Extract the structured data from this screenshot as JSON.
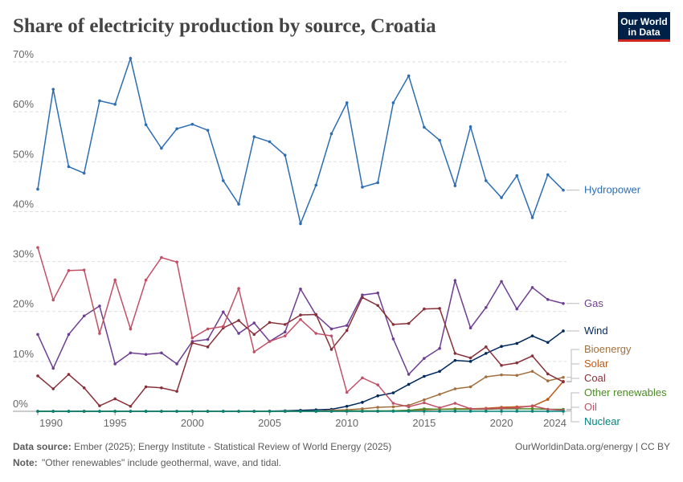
{
  "chart_data": {
    "type": "line",
    "title": "Share of electricity production by source, Croatia",
    "logo": [
      "Our World",
      "in Data"
    ],
    "source_label": "Data source:",
    "source": "Ember (2025); Energy Institute - Statistical Review of World Energy (2025)",
    "url": "OurWorldinData.org/energy | CC BY",
    "note_label": "Note:",
    "note": "\"Other renewables\" include geothermal, wave, and tidal.",
    "x": [
      1990,
      1991,
      1992,
      1993,
      1994,
      1995,
      1996,
      1997,
      1998,
      1999,
      2000,
      2001,
      2002,
      2003,
      2004,
      2005,
      2006,
      2007,
      2008,
      2009,
      2010,
      2011,
      2012,
      2013,
      2014,
      2015,
      2016,
      2017,
      2018,
      2019,
      2020,
      2021,
      2022,
      2023,
      2024
    ],
    "xlim": [
      1990,
      2024
    ],
    "xticks": [
      1990,
      1995,
      2000,
      2005,
      2010,
      2015,
      2020,
      2024
    ],
    "ylim": [
      0,
      70
    ],
    "yticks": [
      {
        "value": 0,
        "label": "0%"
      },
      {
        "value": 10,
        "label": "10%"
      },
      {
        "value": 20,
        "label": "20%"
      },
      {
        "value": 30,
        "label": "30%"
      },
      {
        "value": 40,
        "label": "40%"
      },
      {
        "value": 50,
        "label": "50%"
      },
      {
        "value": 60,
        "label": "60%"
      },
      {
        "value": 70,
        "label": "70%"
      }
    ],
    "grid": true,
    "series": [
      {
        "name": "Hydropower",
        "color": "#2c6db4",
        "values": [
          44.5,
          64.5,
          49,
          47.7,
          62.2,
          61.5,
          70.7,
          57.4,
          52.7,
          56.6,
          57.5,
          56.3,
          46.2,
          41.5,
          55,
          54,
          51.3,
          37.6,
          45.3,
          55.6,
          61.8,
          44.9,
          45.8,
          61.8,
          67.2,
          56.9,
          54.3,
          45.2,
          57,
          46.2,
          42.8,
          47.2,
          38.8,
          47.4,
          44.3
        ]
      },
      {
        "name": "Gas",
        "color": "#6d3e91",
        "values": [
          15.4,
          8.6,
          15.4,
          19.1,
          21.1,
          9.5,
          11.7,
          11.4,
          11.7,
          9.5,
          14,
          14.4,
          19.9,
          15.6,
          17.7,
          14,
          15.9,
          24.5,
          19.3,
          16.5,
          17.2,
          23.3,
          23.7,
          14.5,
          7.4,
          10.6,
          12.6,
          26.2,
          16.7,
          20.8,
          26,
          20.5,
          24.8,
          22.4,
          21.6
        ]
      },
      {
        "name": "Wind",
        "color": "#00295b",
        "values": [
          0,
          0,
          0,
          0,
          0,
          0,
          0,
          0,
          0,
          0,
          0,
          0,
          0,
          0,
          0,
          0.05,
          0.1,
          0.2,
          0.3,
          0.4,
          1,
          1.8,
          3.1,
          3.7,
          5.4,
          7,
          8,
          10.2,
          10,
          11.6,
          13,
          13.6,
          15.1,
          13.8,
          16.1
        ]
      },
      {
        "name": "Bioenergy",
        "color": "#a2703f",
        "values": [
          0,
          0,
          0,
          0,
          0,
          0,
          0,
          0,
          0,
          0,
          0,
          0,
          0,
          0,
          0,
          0,
          0,
          0,
          0,
          0.2,
          0.3,
          0.5,
          0.8,
          0.9,
          1.2,
          2.3,
          3.4,
          4.5,
          4.9,
          6.9,
          7.3,
          7.2,
          8,
          6.1,
          6.8
        ]
      },
      {
        "name": "Solar",
        "color": "#c05917",
        "values": [
          0,
          0,
          0,
          0,
          0,
          0,
          0,
          0,
          0,
          0,
          0,
          0,
          0,
          0,
          0,
          0,
          0,
          0,
          0,
          0,
          0,
          0,
          0,
          0.1,
          0.2,
          0.3,
          0.4,
          0.5,
          0.5,
          0.6,
          0.8,
          0.9,
          1,
          2.4,
          6
        ]
      },
      {
        "name": "Coal",
        "color": "#883039",
        "values": [
          7.1,
          4.5,
          7.4,
          4.7,
          1.1,
          2.5,
          1,
          4.9,
          4.7,
          4,
          13.7,
          12.9,
          16.7,
          18.2,
          15.4,
          17.8,
          17.4,
          19.3,
          19.4,
          12.4,
          16.2,
          22.8,
          21.2,
          17.4,
          17.6,
          20.5,
          20.6,
          11.6,
          10.7,
          12.9,
          9.2,
          9.7,
          11.1,
          7.5,
          5.9
        ]
      },
      {
        "name": "Other renewables",
        "color": "#4c8a28",
        "values": [
          0,
          0,
          0,
          0,
          0,
          0,
          0,
          0,
          0,
          0,
          0,
          0,
          0,
          0,
          0,
          0,
          0,
          0,
          0,
          0,
          0.1,
          0.1,
          0.1,
          0.1,
          0.2,
          0.5,
          0.4,
          0.4,
          0.4,
          0.4,
          0.5,
          0.5,
          0.5,
          0.4,
          0.4
        ]
      },
      {
        "name": "Oil",
        "color": "#c15065",
        "values": [
          32.8,
          22.3,
          28.2,
          28.3,
          15.6,
          26.3,
          16.5,
          26.3,
          30.8,
          29.9,
          14.7,
          16.5,
          17,
          24.6,
          11.9,
          14,
          15.1,
          18.4,
          15.6,
          15.1,
          3.8,
          6.7,
          5.3,
          1.6,
          0.9,
          1.7,
          0.7,
          1.6,
          0.5,
          0.5,
          0.6,
          0.7,
          1.1,
          0.4,
          0.2
        ]
      },
      {
        "name": "Nuclear",
        "color": "#00847e",
        "values": [
          0,
          0,
          0,
          0,
          0,
          0,
          0,
          0,
          0,
          0,
          0,
          0,
          0,
          0,
          0,
          0,
          0,
          0,
          0,
          0,
          0,
          0,
          0,
          0,
          0,
          0,
          0,
          0,
          0,
          0,
          0,
          0,
          0,
          0,
          0
        ]
      }
    ]
  }
}
